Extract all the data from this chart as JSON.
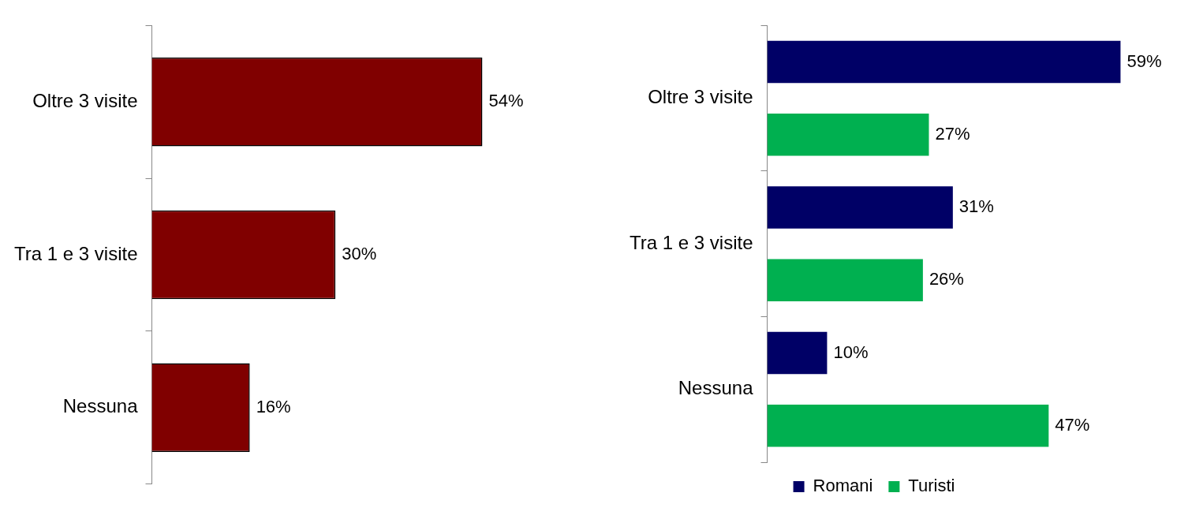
{
  "chart_data": [
    {
      "type": "bar",
      "orientation": "horizontal",
      "categories": [
        "Oltre 3 visite",
        "Tra 1 e 3 visite",
        "Nessuna"
      ],
      "values": [
        54,
        30,
        16
      ],
      "color": "#800000",
      "data_labels": true,
      "value_labels": [
        "54%",
        "30%",
        "16%"
      ]
    },
    {
      "type": "bar",
      "orientation": "horizontal",
      "categories": [
        "Oltre 3 visite",
        "Tra 1 e 3 visite",
        "Nessuna"
      ],
      "series": [
        {
          "name": "Romani",
          "color": "#000066",
          "values": [
            59,
            31,
            10
          ],
          "value_labels": [
            "59%",
            "31%",
            "10%"
          ]
        },
        {
          "name": "Turisti",
          "color": "#00b050",
          "values": [
            27,
            26,
            47
          ],
          "value_labels": [
            "27%",
            "26%",
            "47%"
          ]
        }
      ],
      "data_labels": true,
      "legend": "bottom"
    }
  ]
}
